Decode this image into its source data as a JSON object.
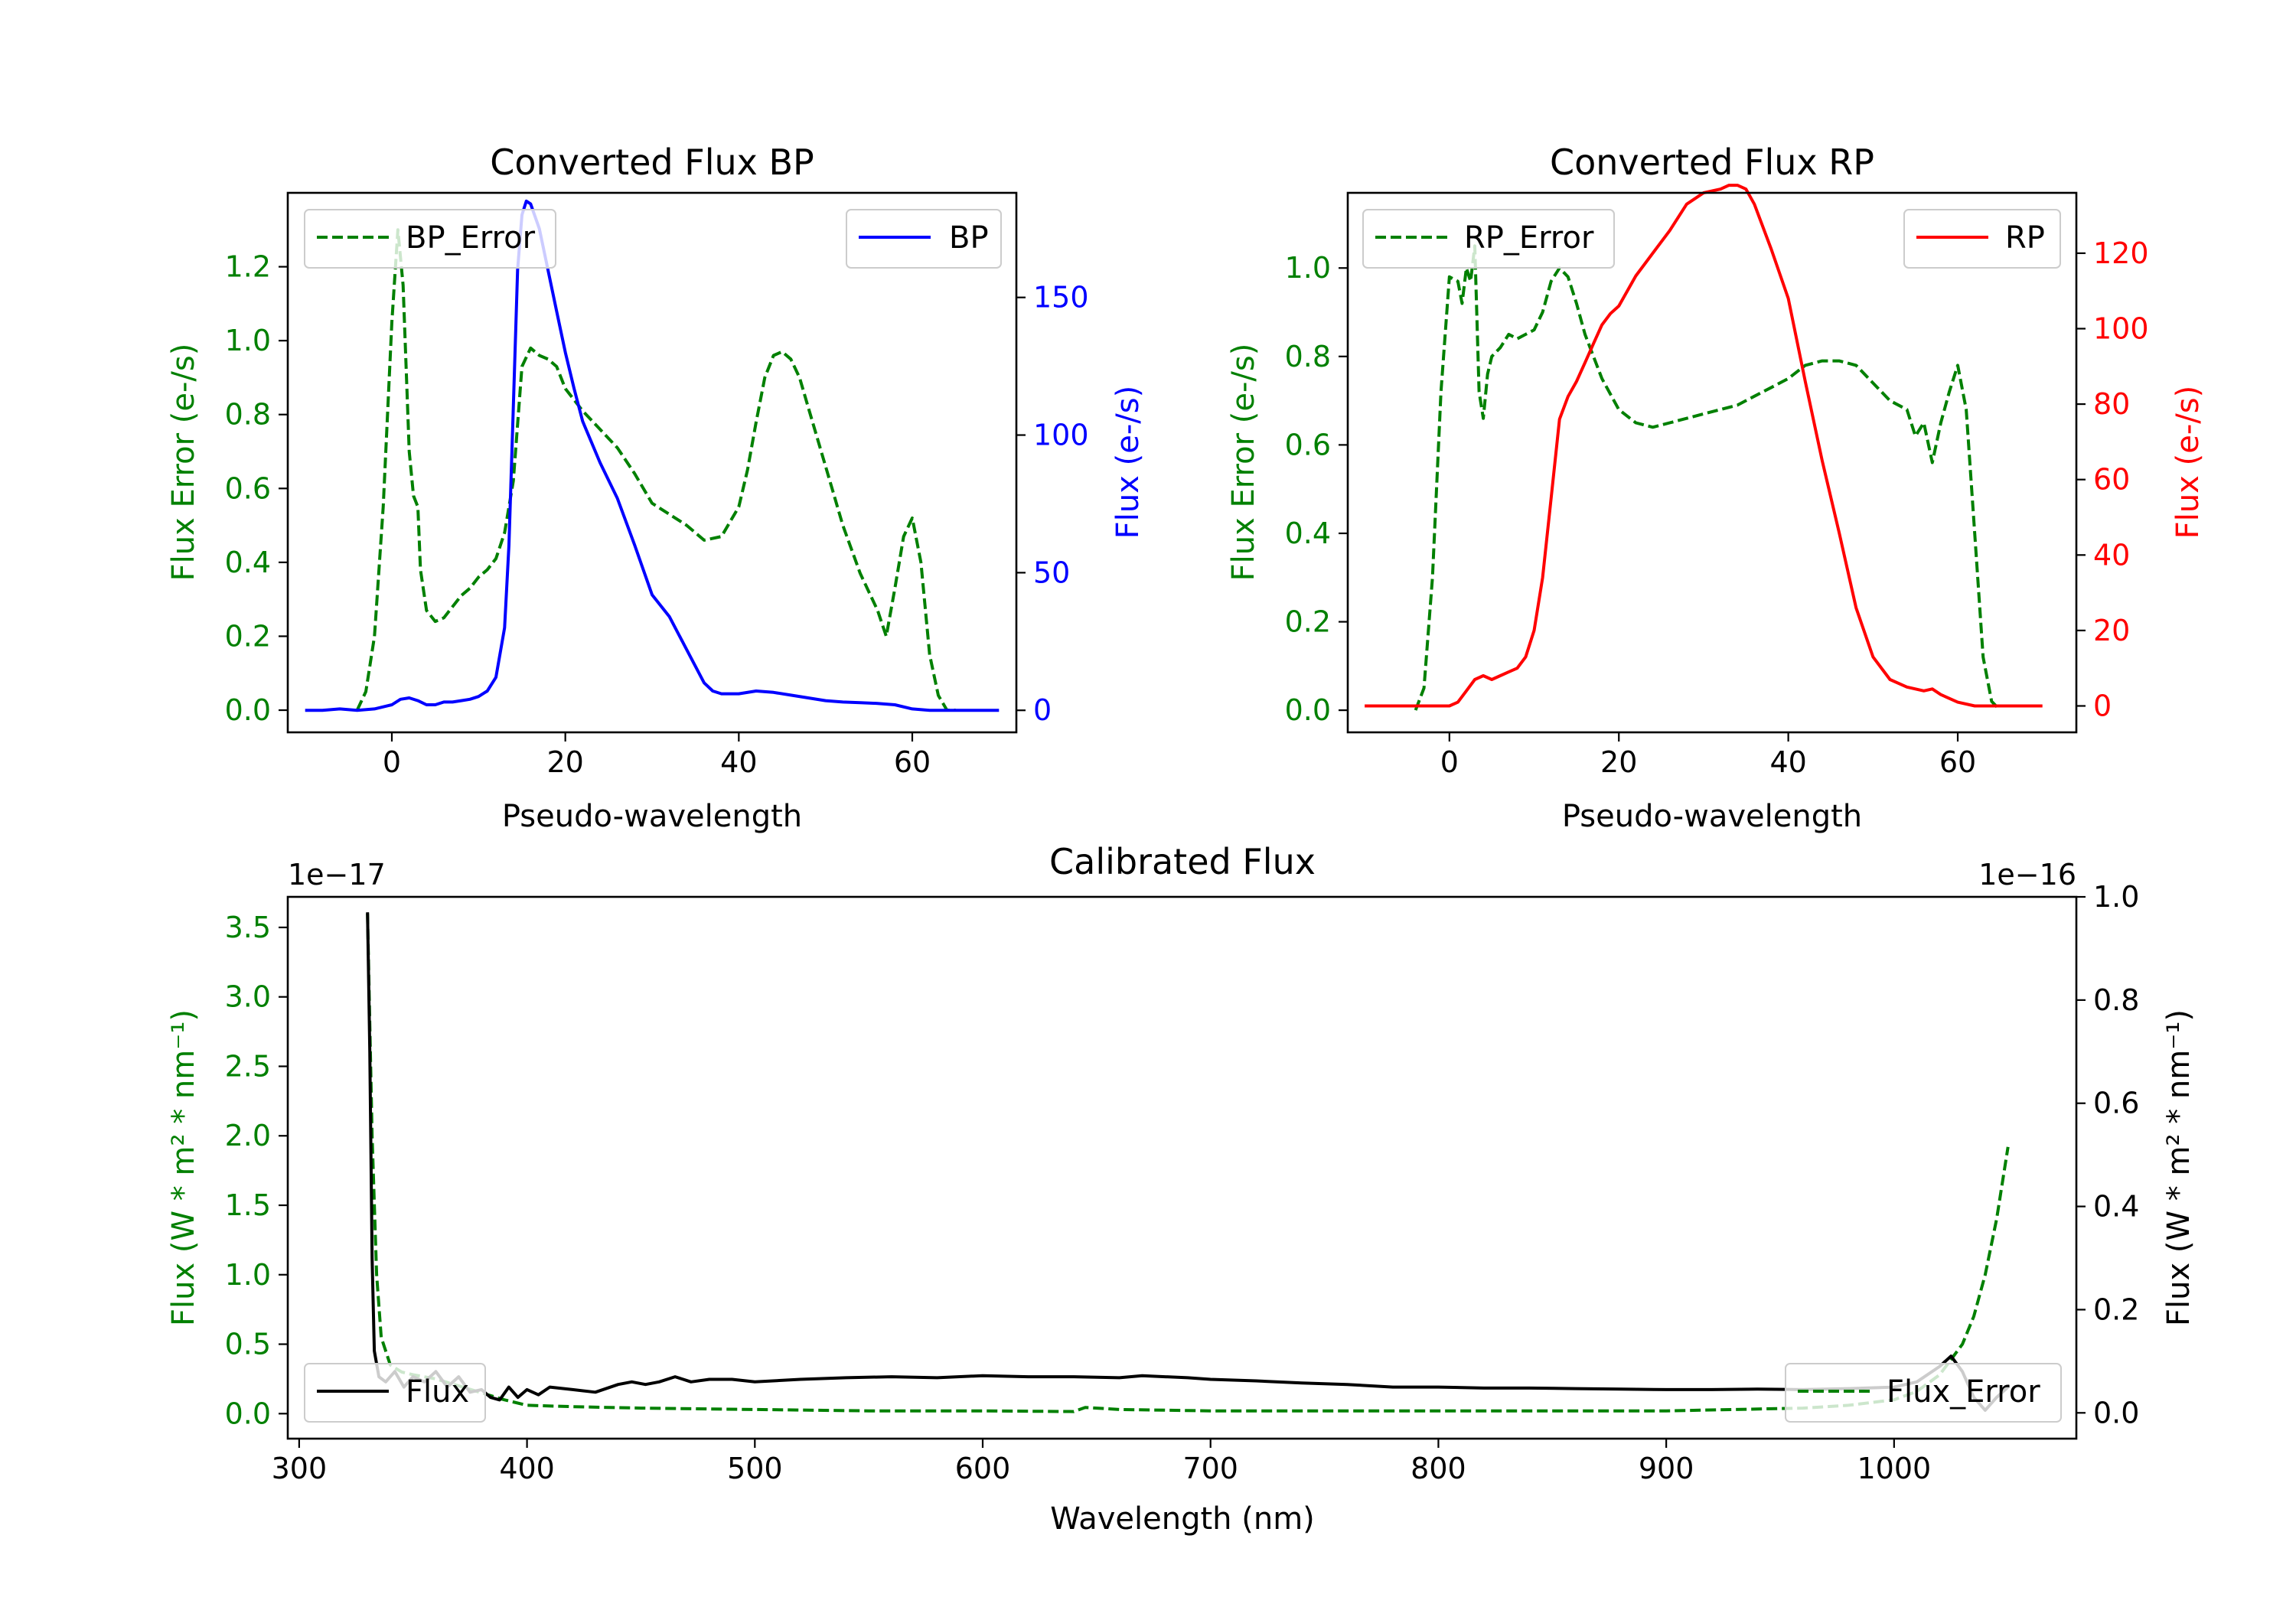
{
  "chart_data": [
    {
      "id": "bp",
      "type": "line",
      "title": "Converted Flux BP",
      "xlabel": "Pseudo-wavelength",
      "xlim": [
        -12,
        72
      ],
      "xticks": [
        0,
        20,
        40,
        60
      ],
      "left_axis": {
        "label": "Flux Error (e-/s)",
        "color": "#008000",
        "ylim": [
          -0.06,
          1.4
        ],
        "ticks": [
          0.0,
          0.2,
          0.4,
          0.6,
          0.8,
          1.0,
          1.2
        ],
        "tick_format": 1
      },
      "right_axis": {
        "label": "Flux (e-/s)",
        "color": "#0000ff",
        "ylim": [
          -8,
          188
        ],
        "ticks": [
          0,
          50,
          100,
          150
        ],
        "tick_format": 0
      },
      "series": [
        {
          "name": "BP_Error",
          "axis": "left",
          "color": "#008000",
          "style": "dashed",
          "legend": "upper left",
          "x": [
            -4,
            -3,
            -2,
            -1,
            0,
            0.7,
            1.3,
            2,
            2.5,
            3,
            3.3,
            4,
            5,
            6,
            7,
            8,
            9,
            10,
            11,
            12,
            13,
            14,
            15,
            16,
            17,
            18,
            19,
            20,
            22,
            24,
            26,
            28,
            30,
            32,
            34,
            36,
            38,
            40,
            41,
            42,
            43,
            44,
            45,
            46,
            47,
            48,
            50,
            52,
            54,
            56,
            57,
            58,
            59,
            60,
            61,
            62,
            63,
            64,
            65
          ],
          "y": [
            0.0,
            0.05,
            0.2,
            0.55,
            1.05,
            1.3,
            1.15,
            0.7,
            0.58,
            0.55,
            0.38,
            0.27,
            0.24,
            0.25,
            0.28,
            0.31,
            0.33,
            0.36,
            0.38,
            0.41,
            0.48,
            0.62,
            0.93,
            0.98,
            0.96,
            0.95,
            0.93,
            0.87,
            0.81,
            0.76,
            0.71,
            0.64,
            0.56,
            0.53,
            0.5,
            0.46,
            0.47,
            0.55,
            0.65,
            0.78,
            0.9,
            0.96,
            0.97,
            0.95,
            0.9,
            0.82,
            0.66,
            0.5,
            0.37,
            0.27,
            0.2,
            0.33,
            0.47,
            0.52,
            0.4,
            0.15,
            0.04,
            0.0,
            0.0
          ]
        },
        {
          "name": "BP",
          "axis": "right",
          "color": "#0000ff",
          "style": "solid",
          "legend": "upper right",
          "x": [
            -10,
            -8,
            -6,
            -4,
            -2,
            0,
            1,
            2,
            3,
            4,
            5,
            6,
            7,
            8,
            9,
            10,
            11,
            12,
            13,
            13.5,
            14,
            14.5,
            15,
            15.5,
            16,
            17,
            18,
            19,
            20,
            21,
            22,
            24,
            26,
            28,
            30,
            32,
            34,
            36,
            37,
            38,
            40,
            42,
            44,
            46,
            48,
            50,
            52,
            54,
            56,
            58,
            60,
            62,
            64,
            66,
            68,
            70
          ],
          "y": [
            0,
            0,
            0.5,
            0,
            0.5,
            2,
            4,
            4.5,
            3.5,
            2,
            2,
            3,
            3,
            3.5,
            4,
            5,
            7,
            12,
            30,
            60,
            110,
            160,
            180,
            185,
            184,
            175,
            160,
            145,
            130,
            117,
            105,
            90,
            77,
            60,
            42,
            34,
            22,
            10,
            7,
            6,
            6,
            7,
            6.5,
            5.5,
            4.5,
            3.5,
            3,
            2.8,
            2.5,
            2,
            0.5,
            0,
            0,
            0,
            0,
            0
          ]
        }
      ],
      "legend": [
        "BP_Error",
        "BP"
      ]
    },
    {
      "id": "rp",
      "type": "line",
      "title": "Converted Flux RP",
      "xlabel": "Pseudo-wavelength",
      "xlim": [
        -12,
        74
      ],
      "xticks": [
        0,
        20,
        40,
        60
      ],
      "left_axis": {
        "label": "Flux Error (e-/s)",
        "color": "#008000",
        "ylim": [
          -0.05,
          1.17
        ],
        "ticks": [
          0.0,
          0.2,
          0.4,
          0.6,
          0.8,
          1.0
        ],
        "tick_format": 1
      },
      "right_axis": {
        "label": "Flux (e-/s)",
        "color": "#ff0000",
        "ylim": [
          -7,
          136
        ],
        "ticks": [
          0,
          20,
          40,
          60,
          80,
          100,
          120
        ],
        "tick_format": 0
      },
      "series": [
        {
          "name": "RP_Error",
          "axis": "left",
          "color": "#008000",
          "style": "dashed",
          "legend": "upper left",
          "x": [
            -4,
            -3,
            -2,
            -1,
            0,
            1,
            1.5,
            2,
            2.5,
            3,
            3.5,
            4,
            4.5,
            5,
            6,
            7,
            8,
            9,
            10,
            11,
            12,
            13,
            14,
            15,
            16,
            18,
            20,
            22,
            24,
            26,
            28,
            30,
            32,
            34,
            36,
            38,
            40,
            42,
            44,
            46,
            48,
            50,
            52,
            54,
            55,
            56,
            57,
            58,
            59,
            60,
            61,
            62,
            63,
            64,
            65
          ],
          "y": [
            0.0,
            0.05,
            0.3,
            0.72,
            0.98,
            0.97,
            0.92,
            1.0,
            0.97,
            1.05,
            0.72,
            0.66,
            0.76,
            0.8,
            0.82,
            0.85,
            0.84,
            0.85,
            0.86,
            0.9,
            0.97,
            1.0,
            0.98,
            0.92,
            0.85,
            0.75,
            0.68,
            0.65,
            0.64,
            0.65,
            0.66,
            0.67,
            0.68,
            0.69,
            0.71,
            0.73,
            0.75,
            0.78,
            0.79,
            0.79,
            0.78,
            0.74,
            0.7,
            0.68,
            0.62,
            0.65,
            0.56,
            0.65,
            0.72,
            0.78,
            0.68,
            0.4,
            0.12,
            0.02,
            0.0
          ]
        },
        {
          "name": "RP",
          "axis": "right",
          "color": "#ff0000",
          "style": "solid",
          "legend": "upper right",
          "x": [
            -10,
            -6,
            -2,
            0,
            1,
            2,
            3,
            4,
            5,
            6,
            7,
            8,
            9,
            10,
            11,
            12,
            13,
            14,
            15,
            16,
            17,
            18,
            19,
            20,
            22,
            24,
            26,
            28,
            30,
            32,
            33,
            34,
            35,
            36,
            38,
            40,
            42,
            44,
            46,
            48,
            50,
            52,
            54,
            56,
            57,
            58,
            60,
            62,
            64,
            66,
            68,
            70
          ],
          "y": [
            0,
            0,
            0,
            0,
            1,
            4,
            7,
            8,
            7,
            8,
            9,
            10,
            13,
            20,
            34,
            55,
            76,
            82,
            86,
            91,
            96,
            101,
            104,
            106,
            114,
            120,
            126,
            133,
            136,
            137,
            138,
            138,
            137,
            133,
            121,
            108,
            86,
            65,
            46,
            26,
            13,
            7,
            5,
            4,
            4.5,
            3,
            1,
            0,
            0,
            0,
            0,
            0
          ]
        }
      ],
      "legend": [
        "RP_Error",
        "RP"
      ]
    },
    {
      "id": "cal",
      "type": "line",
      "title": "Calibrated Flux",
      "xlabel": "Wavelength (nm)",
      "xlim": [
        295,
        1080
      ],
      "xticks": [
        300,
        400,
        500,
        600,
        700,
        800,
        900,
        1000
      ],
      "left_axis": {
        "label": "Flux (W * m² * nm⁻¹)",
        "color": "#008000",
        "ylim": [
          -0.18,
          3.72
        ],
        "ticks": [
          0.0,
          0.5,
          1.0,
          1.5,
          2.0,
          2.5,
          3.0,
          3.5
        ],
        "tick_format": 1,
        "offset_text": "1e−17"
      },
      "right_axis": {
        "label": "Flux (W * m² * nm⁻¹)",
        "color": "#000000",
        "ylim": [
          -0.05,
          1.0
        ],
        "ticks": [
          0.0,
          0.2,
          0.4,
          0.6,
          0.8,
          1.0
        ],
        "tick_format": 1,
        "offset_text": "1e−16"
      },
      "series": [
        {
          "name": "Flux_Error",
          "axis": "left",
          "color": "#008000",
          "style": "dashed",
          "legend": "lower right",
          "x": [
            330,
            332,
            334,
            336,
            340,
            345,
            350,
            360,
            370,
            380,
            390,
            400,
            420,
            450,
            500,
            550,
            600,
            640,
            645,
            660,
            700,
            800,
            900,
            960,
            980,
            1000,
            1010,
            1020,
            1030,
            1035,
            1040,
            1045,
            1050
          ],
          "y": [
            3.6,
            2.0,
            1.0,
            0.55,
            0.35,
            0.3,
            0.28,
            0.25,
            0.2,
            0.15,
            0.1,
            0.06,
            0.05,
            0.04,
            0.03,
            0.02,
            0.02,
            0.015,
            0.045,
            0.03,
            0.02,
            0.02,
            0.02,
            0.04,
            0.06,
            0.1,
            0.16,
            0.28,
            0.5,
            0.7,
            1.0,
            1.4,
            1.92
          ]
        },
        {
          "name": "Flux",
          "axis": "right",
          "color": "#000000",
          "style": "solid",
          "legend": "lower left",
          "x": [
            330,
            331,
            332,
            333,
            335,
            338,
            342,
            346,
            350,
            355,
            360,
            365,
            370,
            375,
            380,
            384,
            388,
            392,
            396,
            400,
            405,
            410,
            420,
            430,
            440,
            446,
            452,
            458,
            465,
            472,
            480,
            490,
            500,
            520,
            540,
            560,
            580,
            600,
            620,
            640,
            660,
            670,
            680,
            690,
            700,
            720,
            740,
            760,
            780,
            800,
            820,
            840,
            860,
            880,
            900,
            920,
            940,
            960,
            980,
            1000,
            1010,
            1020,
            1025,
            1030,
            1035,
            1040,
            1045,
            1050
          ],
          "y": [
            0.97,
            0.7,
            0.3,
            0.12,
            0.07,
            0.06,
            0.08,
            0.05,
            0.07,
            0.06,
            0.08,
            0.05,
            0.07,
            0.04,
            0.045,
            0.03,
            0.025,
            0.05,
            0.03,
            0.045,
            0.035,
            0.05,
            0.045,
            0.04,
            0.055,
            0.06,
            0.055,
            0.06,
            0.07,
            0.06,
            0.065,
            0.065,
            0.06,
            0.065,
            0.068,
            0.07,
            0.068,
            0.072,
            0.07,
            0.07,
            0.068,
            0.072,
            0.07,
            0.068,
            0.065,
            0.062,
            0.058,
            0.055,
            0.05,
            0.05,
            0.048,
            0.048,
            0.047,
            0.046,
            0.045,
            0.045,
            0.046,
            0.045,
            0.047,
            0.05,
            0.06,
            0.09,
            0.11,
            0.08,
            0.03,
            0.005,
            0.03,
            0.05
          ]
        }
      ],
      "legend": [
        "Flux",
        "Flux_Error"
      ]
    }
  ]
}
